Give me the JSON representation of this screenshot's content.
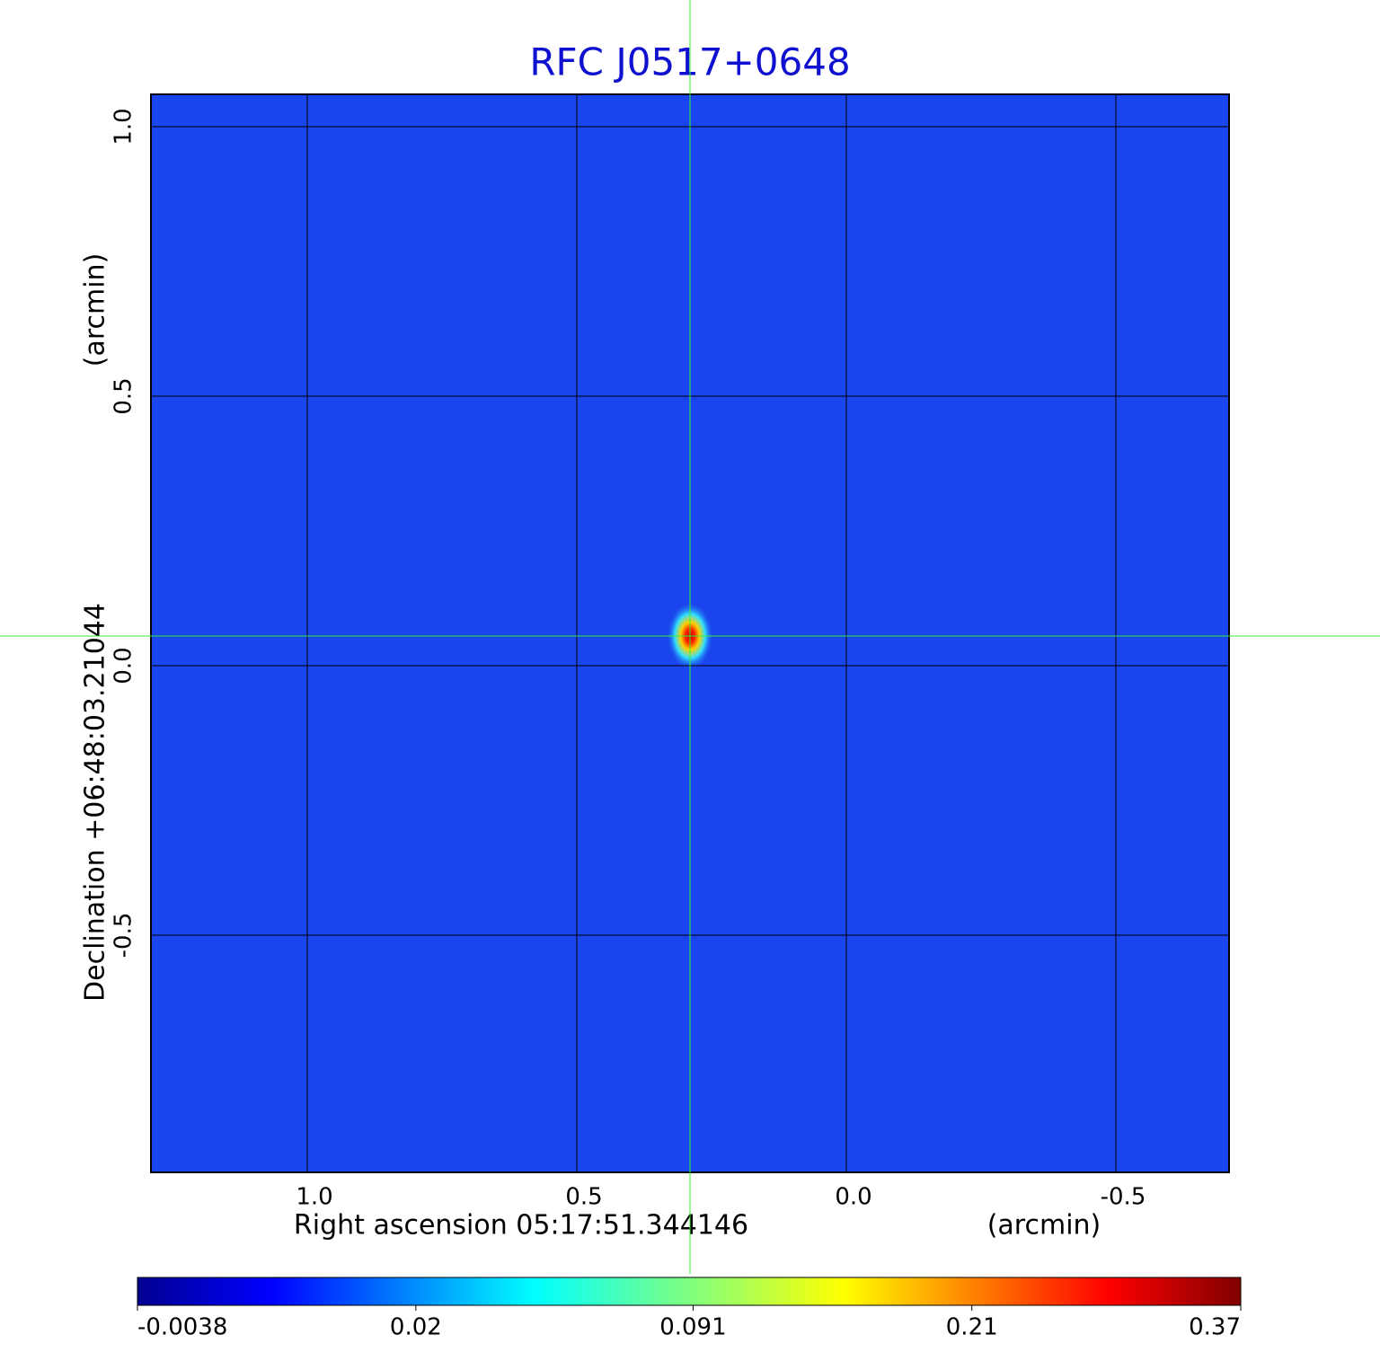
{
  "chart_data": {
    "type": "image",
    "title": "RFC J0517+0648",
    "title_color": "#1010d0",
    "xlabel": "Right ascension  05:17:51.344146",
    "xunit": "(arcmin)",
    "ylabel": "Declination  +06:48:03.21044",
    "yunit": "(arcmin)",
    "xlim": [
      1.29,
      -0.71
    ],
    "ylim": [
      -0.94,
      1.06
    ],
    "xticks": [
      {
        "value": 1,
        "label": "1.0"
      },
      0.5,
      {
        "value": 0,
        "label": "0.0"
      },
      -0.5
    ],
    "yticks": [
      {
        "value": 1,
        "label": "1.0"
      },
      0.5,
      {
        "value": 0,
        "label": "0.0"
      },
      -0.5
    ],
    "grid": true,
    "crosshair": [
      0.29,
      0.055
    ],
    "crosshair_color": "#33ee33",
    "colormap": "jet",
    "cscale": "sqrt",
    "clim": [
      -0.0038,
      0.37
    ],
    "cticks": [
      -0.0038,
      0.02,
      0.091,
      0.21,
      0.37
    ]
  }
}
